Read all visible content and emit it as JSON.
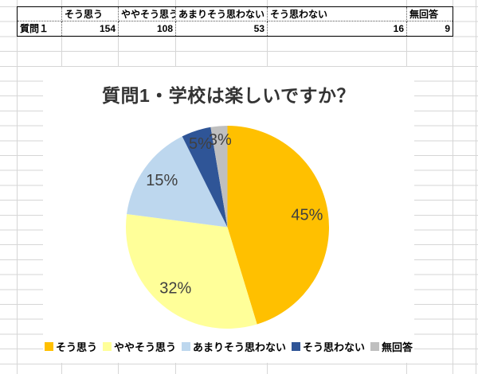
{
  "table": {
    "row_header": "質問１",
    "columns": [
      "そう思う",
      "ややそう思う",
      "あまりそう思わない",
      "そう思わない",
      "無回答"
    ],
    "values": [
      "154",
      "108",
      "53",
      "16",
      "9"
    ]
  },
  "chart_data": {
    "type": "pie",
    "title": "質問1・学校は楽しいですか？",
    "categories": [
      "そう思う",
      "ややそう思う",
      "あまりそう思わない",
      "そう思わない",
      "無回答"
    ],
    "values": [
      154,
      108,
      53,
      16,
      9
    ],
    "percent_labels": [
      "45%",
      "32%",
      "15%",
      "5%",
      "3%"
    ],
    "colors": [
      "#FFC000",
      "#FFFF99",
      "#BDD7EE",
      "#2F5597",
      "#BFBFBF"
    ],
    "label_color": "#404040",
    "legend_position": "bottom",
    "start_angle": "12-oclock",
    "direction": "clockwise"
  }
}
